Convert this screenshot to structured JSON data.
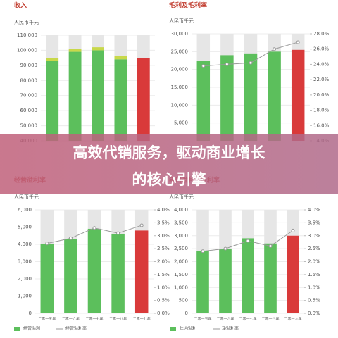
{
  "chart_data": [
    {
      "type": "bar",
      "title": "收入",
      "y_label": "人民币千元",
      "categories": [
        null,
        null,
        null,
        null,
        null
      ],
      "series": [
        {
          "colors": [
            "#5cbf5c",
            "#5cbf5c",
            "#5cbf5c",
            "#5cbf5c",
            "#d93a3a"
          ],
          "values": [
            93000,
            99000,
            100000,
            94000,
            95000
          ]
        },
        {
          "color": "#c8d84a",
          "values": [
            2000,
            2000,
            2000,
            2000,
            null
          ]
        }
      ],
      "ylim": [
        40000,
        110000
      ],
      "yticks": [
        {
          "value": 40000,
          "label": "40,000"
        },
        {
          "value": 50000,
          "label": "50,000"
        },
        {
          "value": 60000,
          "label": "60,000"
        },
        {
          "value": 70000,
          "label": "70,000"
        },
        {
          "value": 80000,
          "label": "80,000"
        },
        {
          "value": 90000,
          "label": "90,000"
        },
        {
          "value": 100000,
          "label": "100,000"
        },
        {
          "value": 110000,
          "label": "110,000"
        }
      ]
    },
    {
      "type": "bar_line",
      "title": "毛利及毛利率",
      "y_label": "人民币千元",
      "categories": [
        null,
        null,
        null,
        null,
        null
      ],
      "series": [
        {
          "colors": [
            "#5cbf5c",
            "#5cbf5c",
            "#5cbf5c",
            "#5cbf5c",
            "#d93a3a"
          ],
          "values": [
            22500,
            24000,
            24500,
            25000,
            25500
          ]
        },
        {
          "color": "#999999",
          "axis": "y2",
          "values": [
            23.8,
            24.0,
            24.2,
            26.0,
            26.9
          ]
        }
      ],
      "ylim": [
        0,
        30000
      ],
      "yticks": [
        {
          "value": 5000,
          "label": "5,000"
        },
        {
          "value": 10000,
          "label": "10,000"
        },
        {
          "value": 15000,
          "label": "15,000"
        },
        {
          "value": 20000,
          "label": "20,000"
        },
        {
          "value": 25000,
          "label": "25,000"
        },
        {
          "value": 30000,
          "label": "30,000"
        }
      ],
      "y2lim": [
        14,
        28
      ],
      "y2ticks": [
        {
          "value": 14,
          "label": "14.0%"
        },
        {
          "value": 16,
          "label": "16.0%"
        },
        {
          "value": 18,
          "label": "18.0%"
        },
        {
          "value": 20,
          "label": "20.0%"
        },
        {
          "value": 22,
          "label": "22.0%"
        },
        {
          "value": 24,
          "label": "24.0%"
        },
        {
          "value": 26,
          "label": "26.0%"
        },
        {
          "value": 28,
          "label": "28.0%"
        }
      ]
    },
    {
      "type": "bar_line",
      "title": "经营溢利率",
      "y_label": "人民币千元",
      "categories": [
        "二零一五年",
        "二零一六年",
        "二零一七年",
        "二零一八年",
        "二零一九年"
      ],
      "series": [
        {
          "name": "经营溢利",
          "color": "#5cbf5c",
          "colors": [
            "#5cbf5c",
            "#5cbf5c",
            "#5cbf5c",
            "#5cbf5c",
            "#d93a3a"
          ],
          "values": [
            4000,
            4300,
            4900,
            4600,
            4800
          ]
        },
        {
          "name": "经营溢利率",
          "color": "#999999",
          "axis": "y2",
          "values": [
            2.7,
            2.9,
            3.3,
            3.1,
            3.4
          ]
        }
      ],
      "ylim": [
        0,
        6000
      ],
      "yticks": [
        0,
        {
          "value": 1000,
          "label": "1,000"
        },
        {
          "value": 2000,
          "label": "2,000"
        },
        {
          "value": 3000,
          "label": "3,000"
        },
        {
          "value": 4000,
          "label": "4,000"
        },
        {
          "value": 5000,
          "label": "5,000"
        },
        {
          "value": 6000,
          "label": "6,000"
        }
      ],
      "y2lim": [
        0,
        4
      ],
      "y2ticks": [
        {
          "value": 0,
          "label": "0.0%"
        },
        {
          "value": 0.5,
          "label": "0.5%"
        },
        {
          "value": 1,
          "label": "1.0%"
        },
        {
          "value": 1.5,
          "label": "1.5%"
        },
        {
          "value": 2,
          "label": "2.0%"
        },
        {
          "value": 2.5,
          "label": "2.5%"
        },
        {
          "value": 3,
          "label": "3.0%"
        },
        {
          "value": 3.5,
          "label": "3.5%"
        },
        {
          "value": 4,
          "label": "4.0%"
        }
      ]
    },
    {
      "type": "bar_line",
      "title": "年内溢利及净利率",
      "y_label": "人民币千元",
      "categories": [
        "二零一五年",
        "二零一六年",
        "二零一七年",
        "二零一八年",
        "二零一九年"
      ],
      "series": [
        {
          "name": "年内溢利",
          "color": "#5cbf5c",
          "colors": [
            "#5cbf5c",
            "#5cbf5c",
            "#5cbf5c",
            "#5cbf5c",
            "#d93a3a"
          ],
          "values": [
            2400,
            2500,
            2900,
            2700,
            3000
          ]
        },
        {
          "name": "净溢利率",
          "color": "#999999",
          "axis": "y2",
          "values": [
            2.4,
            2.5,
            2.8,
            2.6,
            3.2
          ]
        }
      ],
      "ylim": [
        0,
        4000
      ],
      "yticks": [
        0,
        500,
        {
          "value": 1000,
          "label": "1,000"
        },
        {
          "value": 1500,
          "label": "1,500"
        },
        {
          "value": 2000,
          "label": "2,000"
        },
        {
          "value": 2500,
          "label": "2,500"
        },
        {
          "value": 3000,
          "label": "3,000"
        },
        {
          "value": 3500,
          "label": "3,500"
        },
        {
          "value": 4000,
          "label": "4,000"
        }
      ],
      "y2lim": [
        0,
        4
      ],
      "y2ticks": [
        {
          "value": 0,
          "label": "0.0%"
        },
        {
          "value": 0.5,
          "label": "0.5%"
        },
        {
          "value": 1,
          "label": "1.0%"
        },
        {
          "value": 1.5,
          "label": "1.5%"
        },
        {
          "value": 2,
          "label": "2.0%"
        },
        {
          "value": 2.5,
          "label": "2.5%"
        },
        {
          "value": 3,
          "label": "3.0%"
        },
        {
          "value": 3.5,
          "label": "3.5%"
        },
        {
          "value": 4,
          "label": "4.0%"
        }
      ]
    }
  ],
  "banner": {
    "lines": [
      "高效代销服务，驱动商业增长",
      "的核心引擎"
    ]
  }
}
